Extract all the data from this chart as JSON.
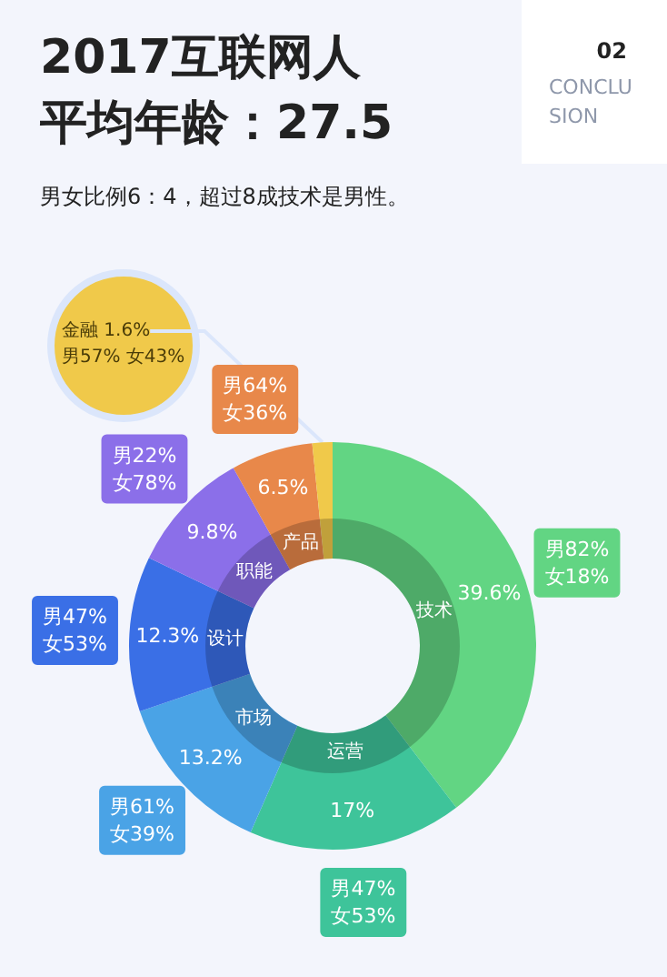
{
  "chart_data": {
    "type": "donut",
    "title": "2017互联网人平均年龄：27.5",
    "subtitle": "男女比例6：4，超过8成技术是男性。",
    "categories": [
      "技术",
      "运营",
      "市场",
      "设计",
      "职能",
      "产品",
      "金融"
    ],
    "values": [
      39.6,
      17,
      13.2,
      12.3,
      9.8,
      6.5,
      1.6
    ],
    "value_labels": [
      "39.6%",
      "17%",
      "13.2%",
      "12.3%",
      "9.8%",
      "6.5%",
      "1.6%"
    ],
    "colors": [
      "#62d583",
      "#3ec49a",
      "#4aa3e6",
      "#3a6fe6",
      "#8b6fe9",
      "#e8884a",
      "#f0c94a"
    ],
    "annotations": [
      {
        "text": "男82% 女18%",
        "x": "技术"
      },
      {
        "text": "男47% 女53%",
        "x": "运营"
      },
      {
        "text": "男61% 女39%",
        "x": "市场"
      },
      {
        "text": "男47% 女53%",
        "x": "设计"
      },
      {
        "text": "男22% 女78%",
        "x": "职能"
      },
      {
        "text": "男64% 女36%",
        "x": "产品"
      },
      {
        "text": "男57% 女43%",
        "x": "金融"
      },
      "02",
      "CONCLUSION"
    ]
  }
}
